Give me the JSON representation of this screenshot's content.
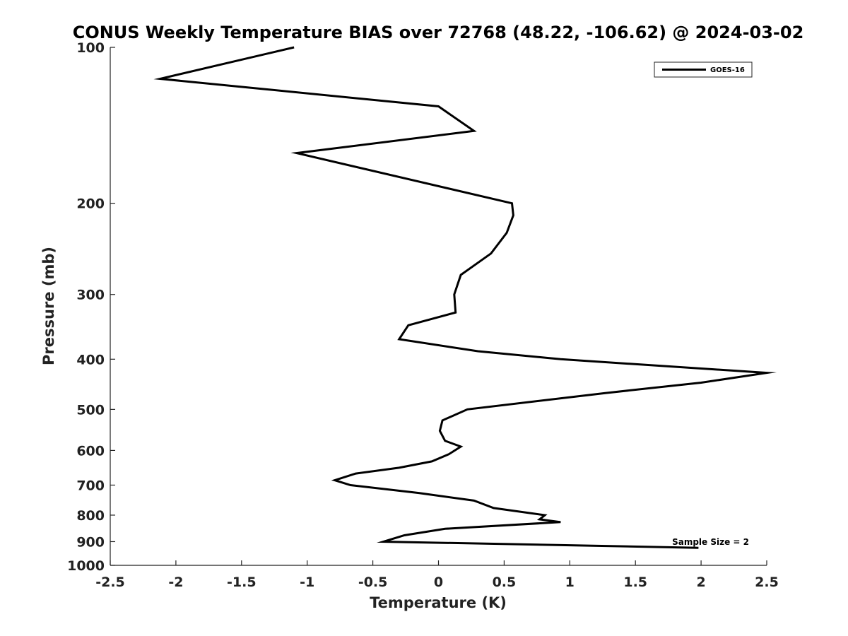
{
  "chart_data": {
    "type": "line",
    "title": "CONUS Weekly Temperature BIAS over 72768 (48.22, -106.62) @ 2024-03-02",
    "xlabel": "Temperature (K)",
    "ylabel": "Pressure (mb)",
    "xlim": [
      -2.5,
      2.5
    ],
    "ylim": [
      1000,
      100
    ],
    "yscale": "log",
    "yaxis_reversed": true,
    "grid": false,
    "legend_position": "top-right",
    "x_ticks": [
      -2.5,
      -2,
      -1.5,
      -1,
      -0.5,
      0,
      0.5,
      1,
      1.5,
      2,
      2.5
    ],
    "x_tick_labels": [
      "-2.5",
      "-2",
      "-1.5",
      "-1",
      "-0.5",
      "0",
      "0.5",
      "1",
      "1.5",
      "2",
      "2.5"
    ],
    "y_ticks": [
      100,
      200,
      300,
      400,
      500,
      600,
      700,
      800,
      900,
      1000
    ],
    "y_tick_labels": [
      "100",
      "200",
      "300",
      "400",
      "500",
      "600",
      "700",
      "800",
      "900",
      "1000"
    ],
    "series": [
      {
        "name": "GOES-16",
        "color": "#000000",
        "points": [
          {
            "x": -1.1,
            "y": 100
          },
          {
            "x": -2.12,
            "y": 115
          },
          {
            "x": 0.0,
            "y": 130
          },
          {
            "x": 0.27,
            "y": 145
          },
          {
            "x": -1.08,
            "y": 160
          },
          {
            "x": 0.56,
            "y": 200
          },
          {
            "x": 0.57,
            "y": 211
          },
          {
            "x": 0.52,
            "y": 228
          },
          {
            "x": 0.4,
            "y": 250
          },
          {
            "x": 0.17,
            "y": 275
          },
          {
            "x": 0.12,
            "y": 300
          },
          {
            "x": 0.13,
            "y": 325
          },
          {
            "x": -0.23,
            "y": 344
          },
          {
            "x": -0.3,
            "y": 366
          },
          {
            "x": 0.3,
            "y": 386
          },
          {
            "x": 0.93,
            "y": 400
          },
          {
            "x": 2.5,
            "y": 425
          },
          {
            "x": 2.0,
            "y": 444
          },
          {
            "x": 1.27,
            "y": 465
          },
          {
            "x": 0.22,
            "y": 500
          },
          {
            "x": 0.03,
            "y": 525
          },
          {
            "x": 0.01,
            "y": 550
          },
          {
            "x": 0.05,
            "y": 575
          },
          {
            "x": 0.17,
            "y": 590
          },
          {
            "x": 0.08,
            "y": 610
          },
          {
            "x": -0.05,
            "y": 630
          },
          {
            "x": -0.3,
            "y": 648
          },
          {
            "x": -0.63,
            "y": 665
          },
          {
            "x": -0.79,
            "y": 685
          },
          {
            "x": -0.67,
            "y": 700
          },
          {
            "x": -0.15,
            "y": 725
          },
          {
            "x": 0.27,
            "y": 750
          },
          {
            "x": 0.42,
            "y": 775
          },
          {
            "x": 0.81,
            "y": 800
          },
          {
            "x": 0.77,
            "y": 815
          },
          {
            "x": 0.93,
            "y": 825
          },
          {
            "x": 0.05,
            "y": 850
          },
          {
            "x": -0.26,
            "y": 875
          },
          {
            "x": -0.42,
            "y": 900
          },
          {
            "x": 1.98,
            "y": 925
          }
        ]
      }
    ],
    "annotations": [
      {
        "text": "Sample Size = 2",
        "position": "bottom-right"
      }
    ]
  }
}
